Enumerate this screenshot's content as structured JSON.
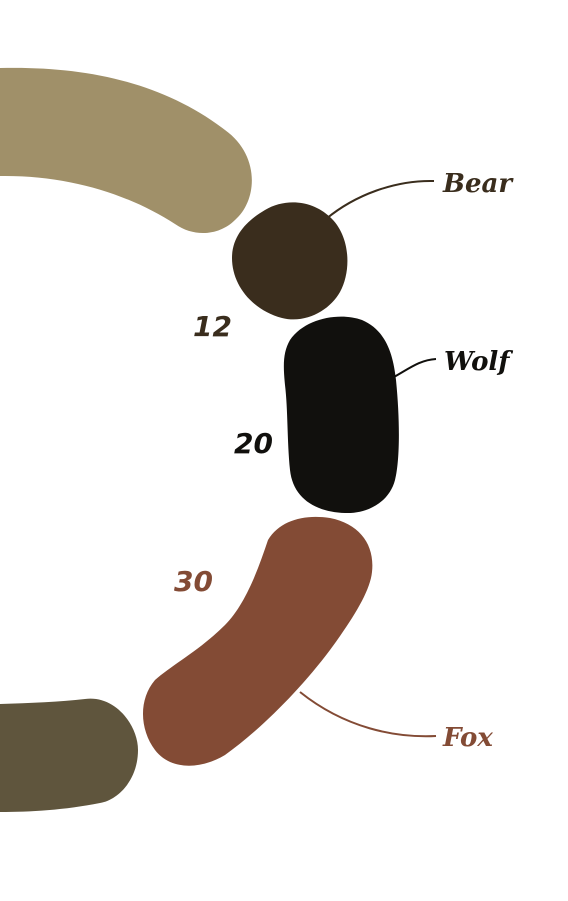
{
  "chart_data": {
    "type": "donut",
    "segments": [
      {
        "name": "Bear",
        "value": 12,
        "value_label": "12",
        "color": "#3a2d1d",
        "label_color": "#3a2d1d"
      },
      {
        "name": "Wolf",
        "value": 20,
        "value_label": "20",
        "color": "#11100d",
        "label_color": "#11100d"
      },
      {
        "name": "Fox",
        "value": 30,
        "value_label": "30",
        "color": "#834b35",
        "label_color": "#834b35"
      }
    ],
    "other_arcs": [
      {
        "color": "#a09069"
      },
      {
        "color": "#5f553d"
      }
    ]
  }
}
